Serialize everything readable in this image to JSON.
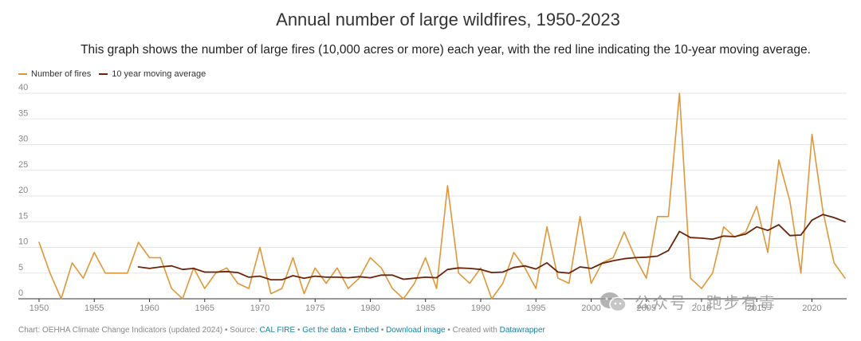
{
  "header": {
    "title": "Annual number of large wildfires, 1950-2023",
    "subtitle": "This graph shows the number of large fires (10,000 acres or more) each year, with the red line indicating the 10-year moving average."
  },
  "legend": {
    "fires_label": "Number of fires",
    "avg_label": "10 year moving average"
  },
  "colors": {
    "fires": "#e0973a",
    "average": "#6b2408",
    "grid": "#e6e6e6",
    "axis": "#333333",
    "link": "#1d81a2"
  },
  "chart_data": {
    "type": "line",
    "x": [
      1950,
      1951,
      1952,
      1953,
      1954,
      1955,
      1956,
      1957,
      1958,
      1959,
      1960,
      1961,
      1962,
      1963,
      1964,
      1965,
      1966,
      1967,
      1968,
      1969,
      1970,
      1971,
      1972,
      1973,
      1974,
      1975,
      1976,
      1977,
      1978,
      1979,
      1980,
      1981,
      1982,
      1983,
      1984,
      1985,
      1986,
      1987,
      1988,
      1989,
      1990,
      1991,
      1992,
      1993,
      1994,
      1995,
      1996,
      1997,
      1998,
      1999,
      2000,
      2001,
      2002,
      2003,
      2004,
      2005,
      2006,
      2007,
      2008,
      2009,
      2010,
      2011,
      2012,
      2013,
      2014,
      2015,
      2016,
      2017,
      2018,
      2019,
      2020,
      2021,
      2022,
      2023
    ],
    "series": [
      {
        "name": "Number of fires",
        "values": [
          11,
          5,
          0,
          7,
          4,
          9,
          5,
          5,
          5,
          11,
          8,
          8,
          2,
          0,
          6,
          2,
          5,
          6,
          3,
          2,
          10,
          1,
          2,
          8,
          1,
          6,
          3,
          6,
          2,
          4,
          8,
          6,
          2,
          0,
          3,
          8,
          2,
          22,
          5,
          3,
          6,
          0,
          3,
          9,
          6,
          2,
          14,
          4,
          3,
          16,
          3,
          7,
          8,
          13,
          8,
          4,
          16,
          16,
          40,
          4,
          2,
          5,
          14,
          12,
          13,
          18,
          9,
          27,
          19,
          5,
          32,
          17,
          7,
          4
        ]
      },
      {
        "name": "10 year moving average",
        "values": [
          null,
          null,
          null,
          null,
          null,
          null,
          null,
          null,
          null,
          6.2,
          5.9,
          6.2,
          6.4,
          5.7,
          5.9,
          5.2,
          5.2,
          5.3,
          5.1,
          4.2,
          4.4,
          3.7,
          3.7,
          4.5,
          4.0,
          4.4,
          4.2,
          4.2,
          4.1,
          4.3,
          4.1,
          4.6,
          4.6,
          3.8,
          4.0,
          4.2,
          4.1,
          5.7,
          6.0,
          5.9,
          5.7,
          5.1,
          5.2,
          6.1,
          6.4,
          5.8,
          7.0,
          5.2,
          5.0,
          6.2,
          5.9,
          6.9,
          7.4,
          7.8,
          8.0,
          8.1,
          8.3,
          9.4,
          13.1,
          11.9,
          11.8,
          11.6,
          12.2,
          12.1,
          12.6,
          14.0,
          13.3,
          14.4,
          12.3,
          12.4,
          15.3,
          16.4,
          15.8,
          15.0
        ]
      }
    ],
    "ylim": [
      0,
      40
    ],
    "yticks": [
      0,
      5,
      10,
      15,
      20,
      25,
      30,
      35,
      40
    ],
    "xticks": [
      1950,
      1955,
      1960,
      1965,
      1970,
      1975,
      1980,
      1985,
      1990,
      1995,
      2000,
      2005,
      2010,
      2015,
      2020
    ],
    "grid": true,
    "legend_position": "top-left"
  },
  "footer": {
    "prefix": "Chart: OEHHA Climate Change Indicators (updated 2024) • Source: ",
    "source_link": "CAL FIRE",
    "sep1": " • ",
    "get_data": "Get the data",
    "sep2": " • ",
    "embed": "Embed",
    "sep3": " • ",
    "download": "Download image",
    "created": " • Created with ",
    "datawrapper": "Datawrapper"
  },
  "watermark": {
    "text": "公众号 · 跑步有毒",
    "icon": "wechat-icon"
  }
}
